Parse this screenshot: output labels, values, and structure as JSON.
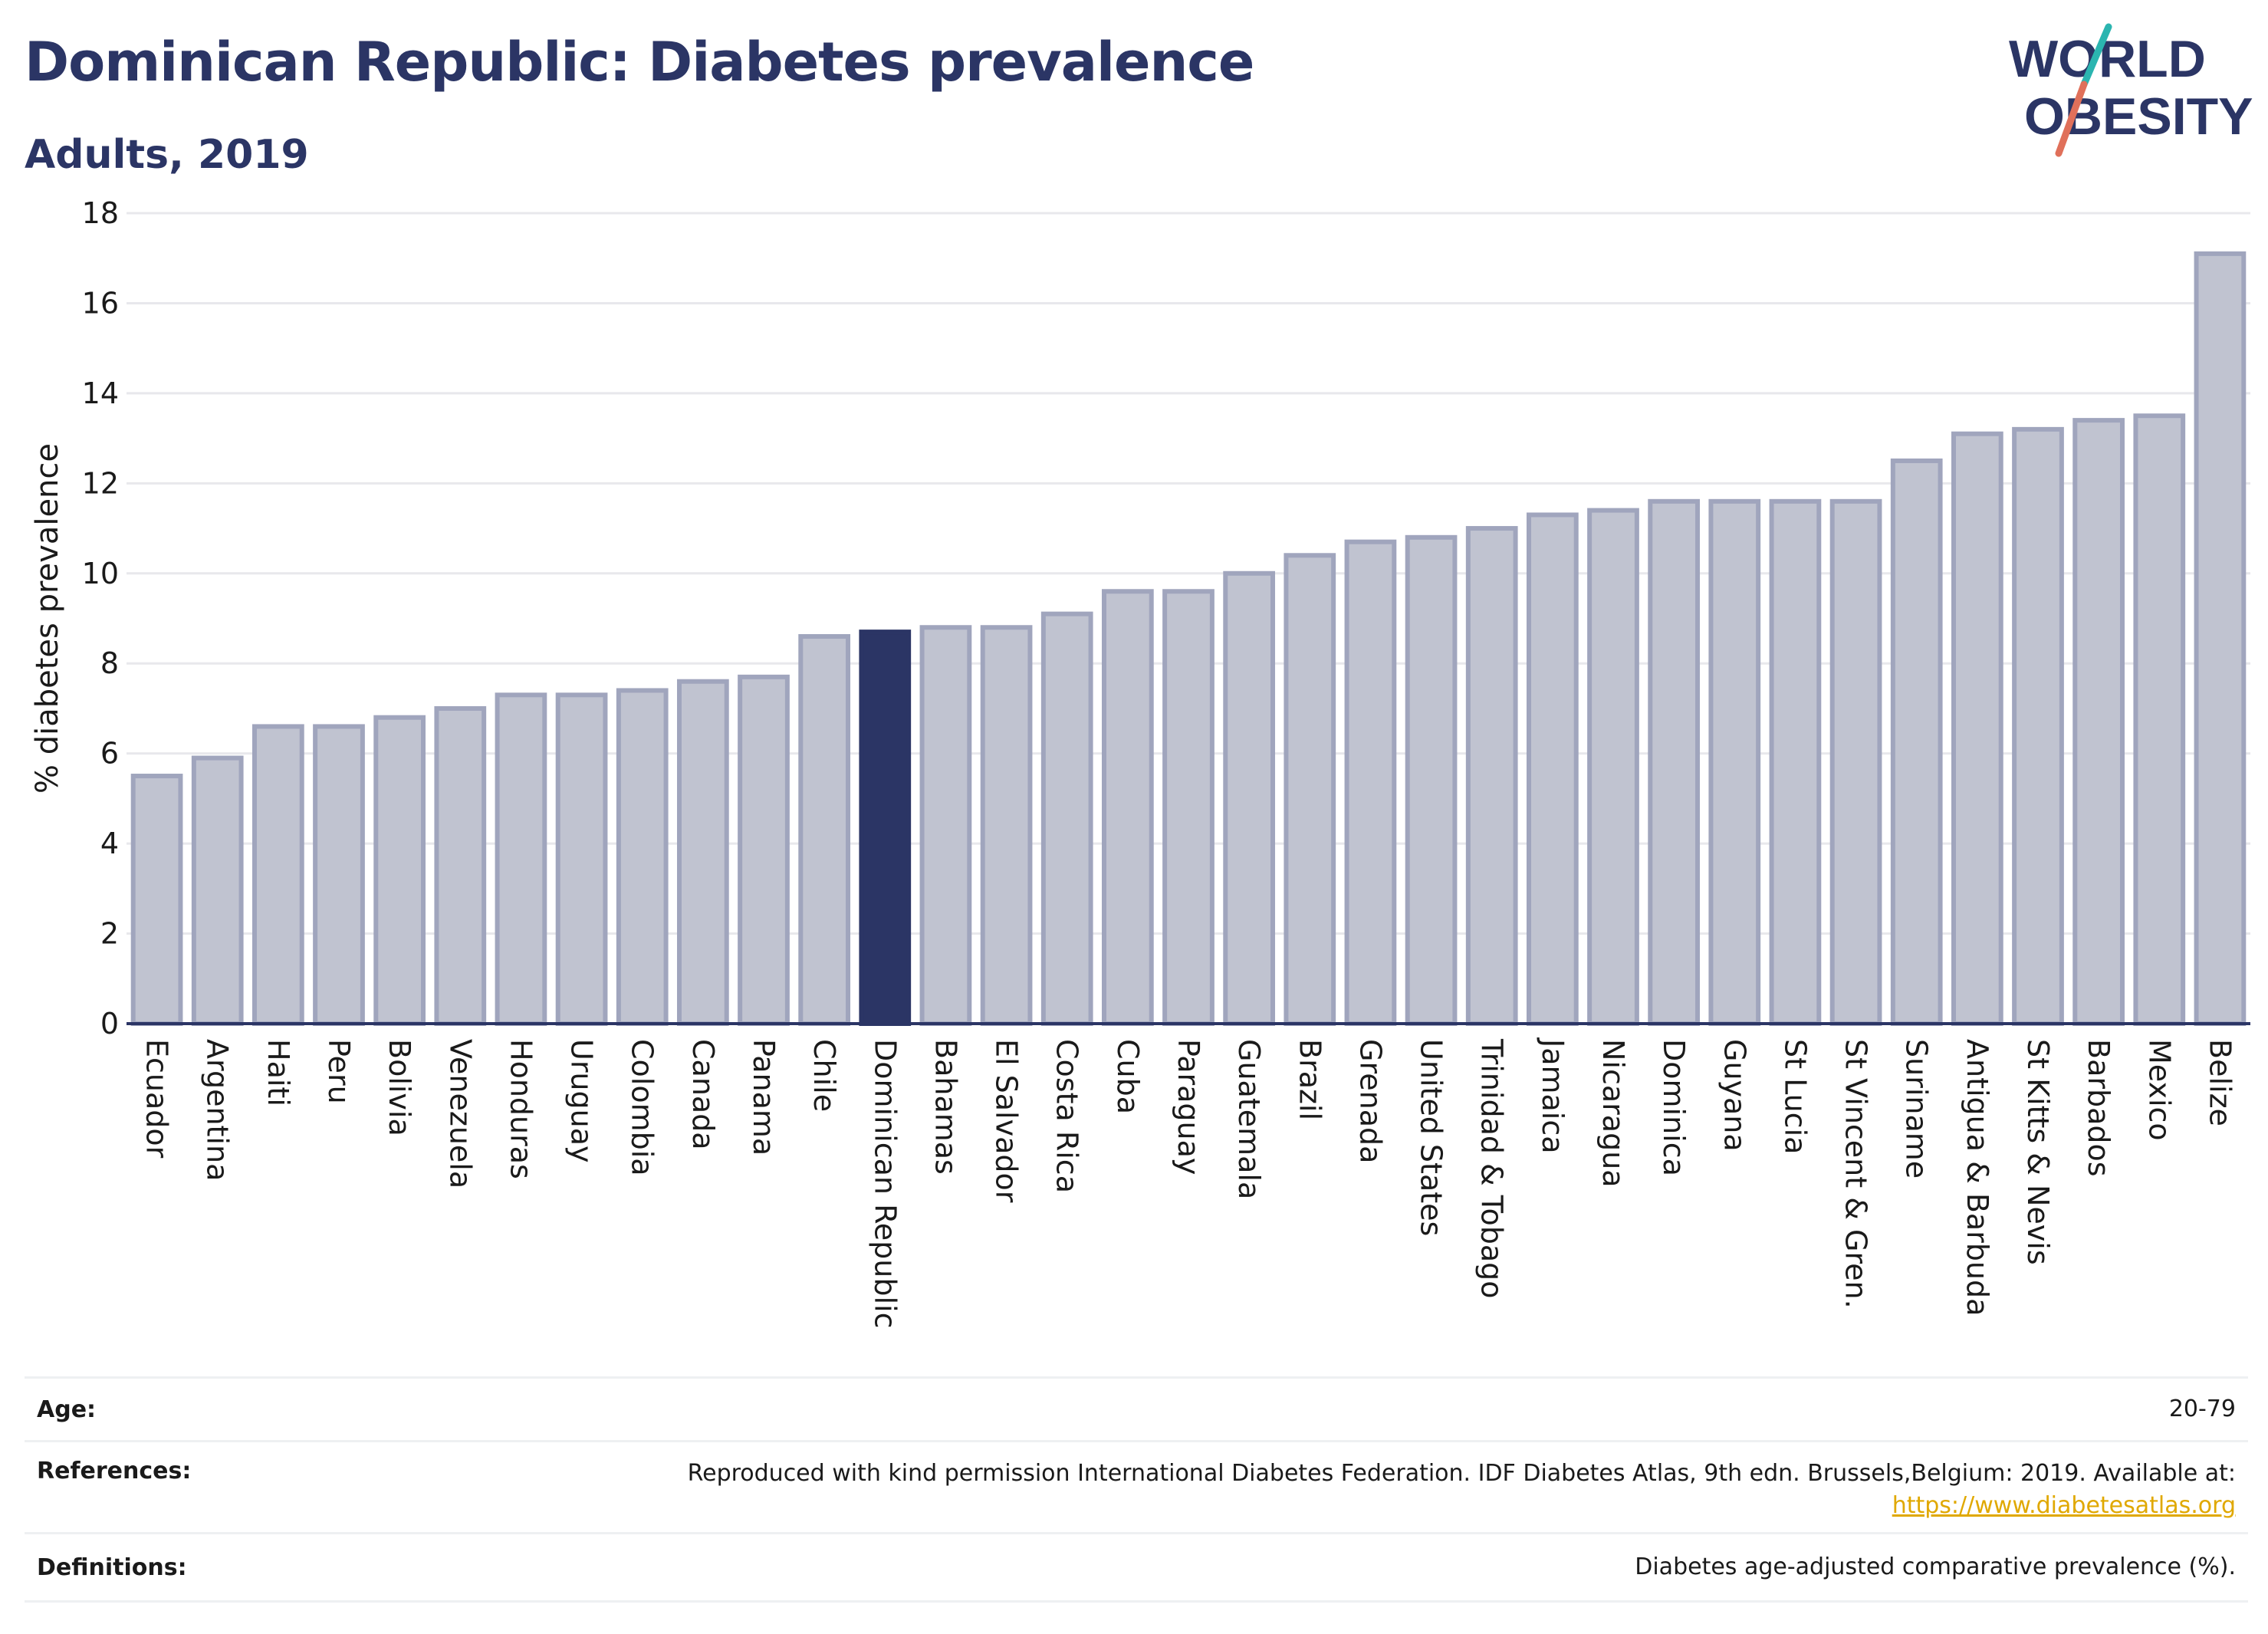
{
  "header": {
    "title": "Dominican Republic: Diabetes prevalence",
    "subtitle": "Adults, 2019"
  },
  "logo": {
    "line1": "WORLD",
    "line2": "OBESITY",
    "colors": {
      "text": "#2b3565",
      "slash_teal": "#2bb5b0",
      "slash_coral": "#e0705a"
    }
  },
  "colors": {
    "bar_default": "#c0c3d0",
    "bar_border": "#a0a5bd",
    "bar_highlight": "#2b3565",
    "grid": "#e8e8ec",
    "axis": "#2b3565"
  },
  "chart_data": {
    "type": "bar",
    "ylabel": "% diabetes prevalence",
    "xlabel": "",
    "ylim": [
      0,
      18
    ],
    "yticks": [
      0,
      2,
      4,
      6,
      8,
      10,
      12,
      14,
      16,
      18
    ],
    "grid": true,
    "highlight": "Dominican Republic",
    "categories": [
      "Ecuador",
      "Argentina",
      "Haiti",
      "Peru",
      "Bolivia",
      "Venezuela",
      "Honduras",
      "Uruguay",
      "Colombia",
      "Canada",
      "Panama",
      "Chile",
      "Dominican Republic",
      "Bahamas",
      "El Salvador",
      "Costa Rica",
      "Cuba",
      "Paraguay",
      "Guatemala",
      "Brazil",
      "Grenada",
      "United States",
      "Trinidad & Tobago",
      "Jamaica",
      "Nicaragua",
      "Dominica",
      "Guyana",
      "St Lucia",
      "St Vincent & Gren.",
      "Suriname",
      "Antigua & Barbuda",
      "St Kitts & Nevis",
      "Barbados",
      "Mexico",
      "Belize"
    ],
    "values": [
      5.5,
      5.9,
      6.6,
      6.6,
      6.8,
      7.0,
      7.3,
      7.3,
      7.4,
      7.6,
      7.7,
      8.6,
      8.7,
      8.8,
      8.8,
      9.1,
      9.6,
      9.6,
      10.0,
      10.4,
      10.7,
      10.8,
      11.0,
      11.3,
      11.4,
      11.6,
      11.6,
      11.6,
      11.6,
      12.5,
      13.1,
      13.2,
      13.4,
      13.5,
      17.1
    ]
  },
  "footer": {
    "age_label": "Age:",
    "age_value": "20-79",
    "references_label": "References:",
    "references_value": "Reproduced with kind permission International Diabetes Federation. IDF Diabetes Atlas, 9th edn. Brussels,Belgium: 2019. Available at:",
    "references_link": "https://www.diabetesatlas.org",
    "definitions_label": "Definitions:",
    "definitions_value": "Diabetes age-adjusted comparative prevalence (%)."
  }
}
